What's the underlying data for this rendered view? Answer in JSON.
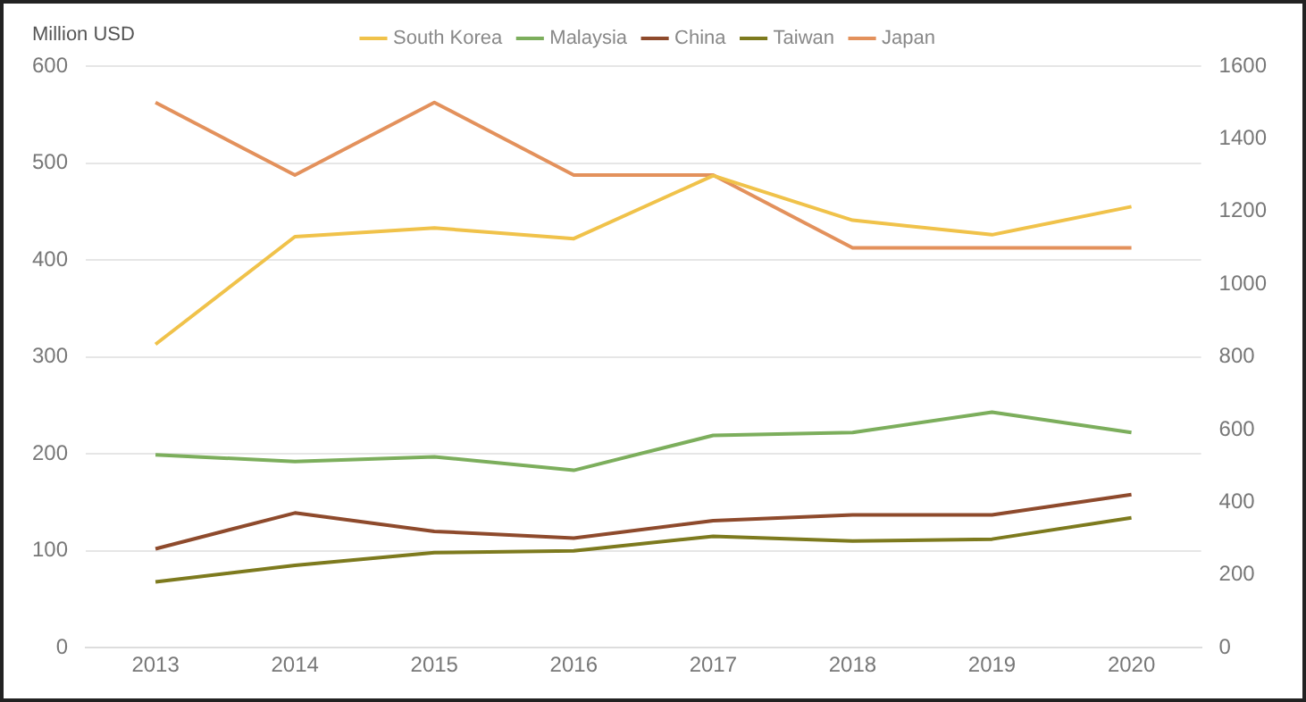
{
  "chart_data": {
    "type": "line",
    "ylabel": "Million USD",
    "categories": [
      "2013",
      "2014",
      "2015",
      "2016",
      "2017",
      "2018",
      "2019",
      "2020"
    ],
    "series": [
      {
        "name": "South Korea",
        "color": "#f0c24a",
        "values": [
          313,
          424,
          433,
          422,
          487,
          441,
          426,
          455
        ]
      },
      {
        "name": "Malaysia",
        "color": "#7cae5c",
        "values": [
          199,
          192,
          197,
          183,
          219,
          222,
          243,
          222
        ]
      },
      {
        "name": "China",
        "color": "#8e4a2c",
        "values": [
          102,
          139,
          120,
          113,
          131,
          137,
          137,
          158
        ]
      },
      {
        "name": "Taiwan",
        "color": "#7d7a1e",
        "values": [
          68,
          85,
          98,
          100,
          115,
          110,
          112,
          134
        ]
      },
      {
        "name": "Japan",
        "color": "#e3915c",
        "axis": "y2",
        "values": [
          1500,
          1300,
          1500,
          1300,
          1300,
          1100,
          1100,
          1100
        ]
      }
    ],
    "ylim": [
      0,
      600
    ],
    "yticks": [
      0,
      100,
      200,
      300,
      400,
      500,
      600
    ],
    "y2lim": [
      0,
      1600
    ],
    "y2ticks": [
      0,
      200,
      400,
      600,
      800,
      1000,
      1200,
      1400,
      1600
    ],
    "grid": "y",
    "legend": "top",
    "marker": "none",
    "line_style": "solid"
  }
}
